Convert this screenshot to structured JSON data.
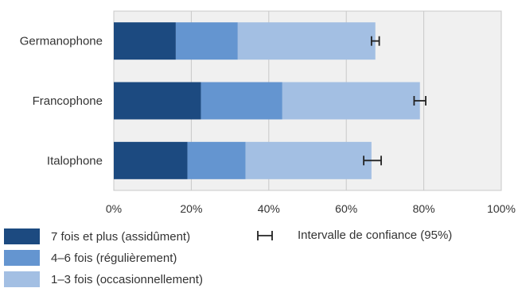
{
  "chart_data": {
    "type": "bar",
    "orientation": "horizontal",
    "stacked": true,
    "categories": [
      "Germanophone",
      "Francophone",
      "Italophone"
    ],
    "series": [
      {
        "name": "7 fois et plus (assidûment)",
        "values": [
          16,
          22.5,
          19
        ],
        "color": "#1c4a80"
      },
      {
        "name": "4–6 fois (régulièrement)",
        "values": [
          16,
          21,
          15
        ],
        "color": "#6495d0"
      },
      {
        "name": "1–3 fois (occasionnellement)",
        "values": [
          35.5,
          35.5,
          32.5
        ],
        "color": "#a3bfe3"
      }
    ],
    "confidence_intervals": [
      [
        66.5,
        68.5
      ],
      [
        77.5,
        80.5
      ],
      [
        64.5,
        69
      ]
    ],
    "confidence_label": "Intervalle de confiance (95%)",
    "xlim": [
      0,
      100
    ],
    "xticks": [
      "0%",
      "20%",
      "40%",
      "60%",
      "80%",
      "100%"
    ],
    "grid": true,
    "legend_position": "bottom",
    "plot_background": "#f0f0f0"
  }
}
